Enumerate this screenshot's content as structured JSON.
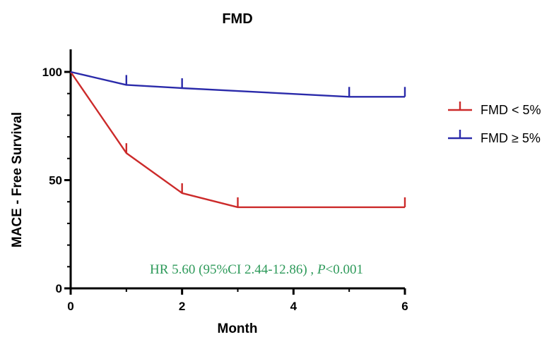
{
  "chart_data": {
    "type": "line",
    "title": "FMD",
    "xlabel": "Month",
    "ylabel": "MACE - Free Survival",
    "xlim": [
      0,
      6
    ],
    "ylim": [
      0,
      100
    ],
    "x_ticks": [
      0,
      2,
      4,
      6
    ],
    "y_ticks": [
      0,
      50,
      100
    ],
    "grid": false,
    "legend_position": "right",
    "series": [
      {
        "name": "FMD < 5%",
        "color": "#cc2a2a",
        "step": false,
        "x": [
          0,
          1,
          2,
          3,
          6
        ],
        "y": [
          100,
          62.5,
          44,
          37.5,
          37.5
        ],
        "censor_x": [
          1,
          2,
          3,
          6
        ],
        "censor_y": [
          62.5,
          44,
          37.5,
          37.5
        ]
      },
      {
        "name": "FMD ≥ 5%",
        "color": "#2a2aaa",
        "step": false,
        "x": [
          0,
          1,
          2,
          5,
          6
        ],
        "y": [
          100,
          94,
          92.5,
          88.5,
          88.5
        ],
        "censor_x": [
          1,
          2,
          5,
          6
        ],
        "censor_y": [
          94,
          92.5,
          88.5,
          88.5
        ]
      }
    ],
    "annotation": {
      "text_prefix": "HR 5.60 (95%CI 2.44-12.86) , ",
      "p_symbol": "P",
      "text_suffix": "<0.001",
      "color": "#2e9a5a"
    }
  }
}
